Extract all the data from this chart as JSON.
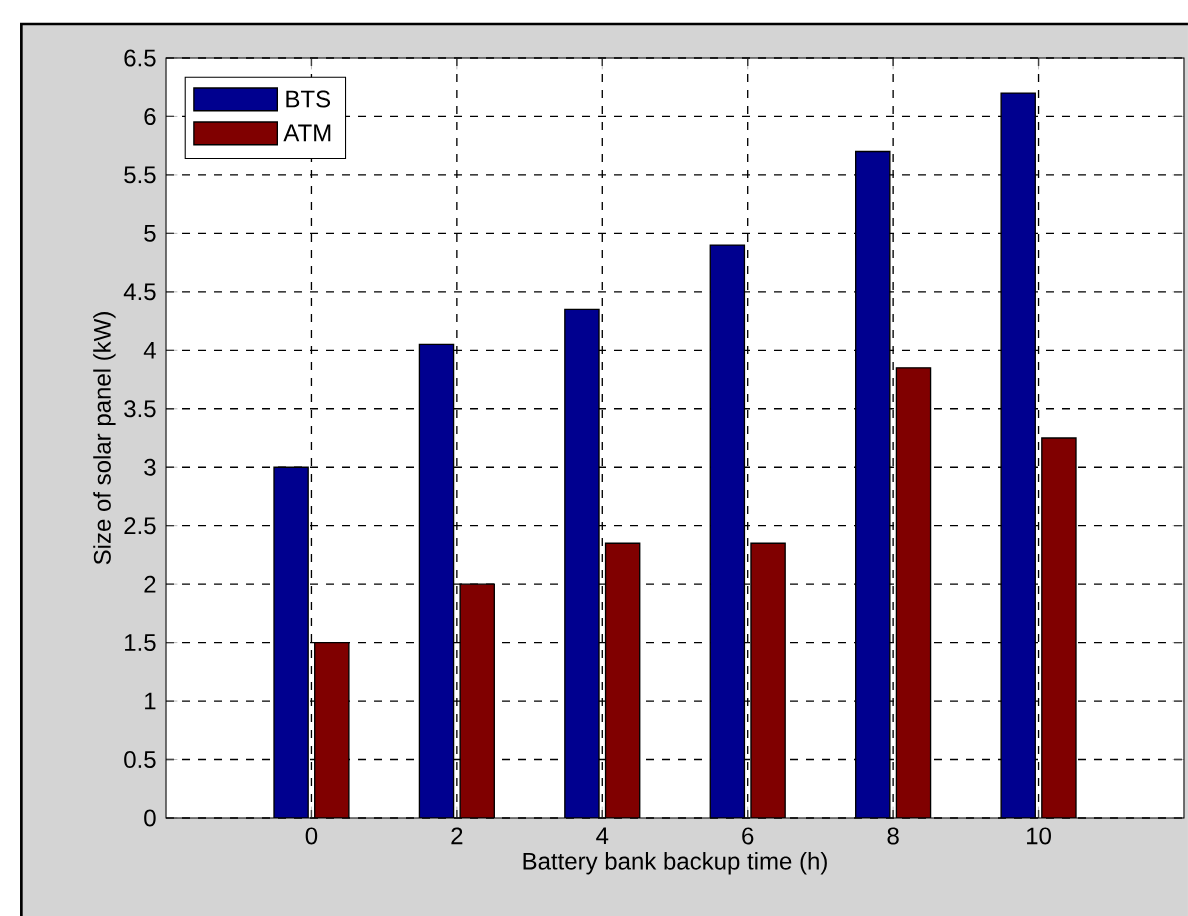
{
  "chart_data": {
    "type": "bar",
    "xlabel": "Battery bank backup time (h)",
    "ylabel": "Size of solar panel (kW)",
    "x": [
      0,
      2,
      4,
      6,
      8,
      10
    ],
    "series": [
      {
        "name": "BTS",
        "color": "#00008f",
        "values": [
          3,
          4.05,
          4.35,
          4.9,
          5.7,
          6.2
        ]
      },
      {
        "name": "ATM",
        "color": "#800000",
        "values": [
          1.5,
          2,
          2.35,
          2.35,
          3.85,
          3.25
        ]
      }
    ],
    "xlim": [
      -2,
      12
    ],
    "xticks": [
      0,
      2,
      4,
      6,
      8,
      10
    ],
    "ylim": [
      0,
      6.5
    ],
    "yticks": [
      0,
      0.5,
      1,
      1.5,
      2,
      2.5,
      3,
      3.5,
      4,
      4.5,
      5,
      5.5,
      6,
      6.5
    ],
    "grid": true,
    "legend": "top left"
  }
}
